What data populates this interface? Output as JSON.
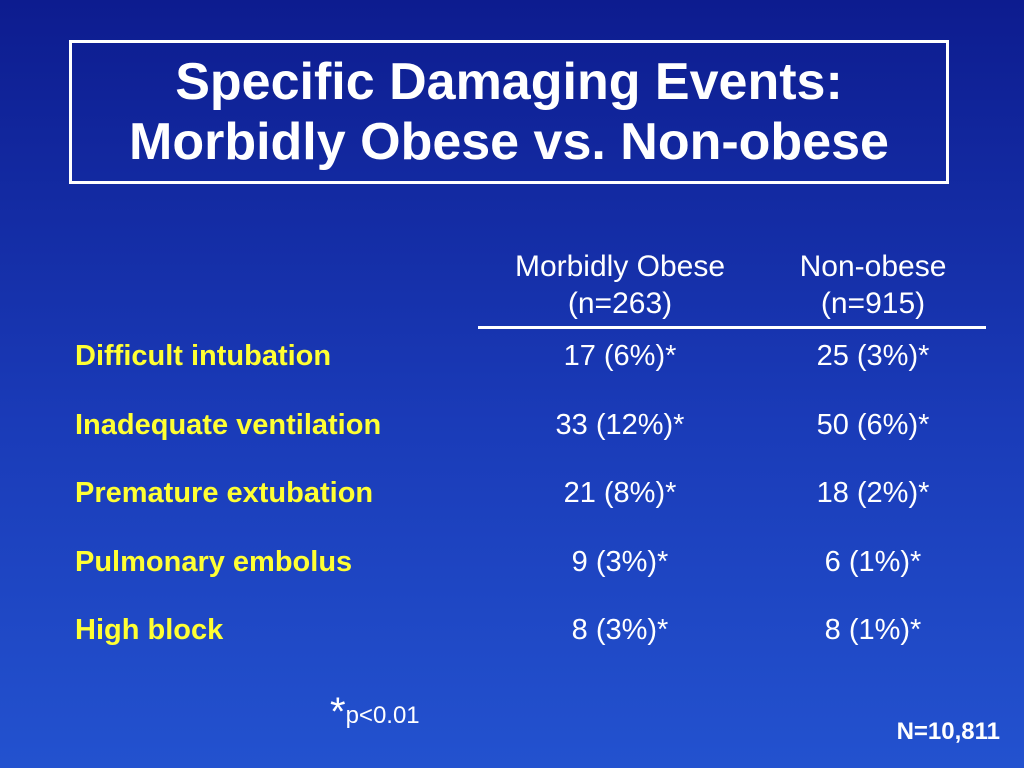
{
  "title": {
    "line1": "Specific Damaging Events:",
    "line2": "Morbidly Obese vs. Non-obese"
  },
  "table": {
    "columns": [
      {
        "name": "Morbidly Obese",
        "n": "(n=263)"
      },
      {
        "name": "Non-obese",
        "n": "(n=915)"
      }
    ],
    "rows": [
      {
        "label": "Difficult intubation",
        "obese": "17 (6%)*",
        "non_obese": "25 (3%)*"
      },
      {
        "label": "Inadequate ventilation",
        "obese": "33 (12%)*",
        "non_obese": "50 (6%)*"
      },
      {
        "label": "Premature extubation",
        "obese": "21 (8%)*",
        "non_obese": "18 (2%)*"
      },
      {
        "label": "Pulmonary embolus",
        "obese": "9 (3%)*",
        "non_obese": "6 (1%)*"
      },
      {
        "label": "High block",
        "obese": "8 (3%)*",
        "non_obese": "8 (1%)*"
      }
    ]
  },
  "footnote": {
    "star": "*",
    "text": "p<0.01"
  },
  "total_n": "N=10,811",
  "colors": {
    "background": "#1a3bb8",
    "label_yellow": "#ffff33",
    "text_white": "#ffffff"
  }
}
